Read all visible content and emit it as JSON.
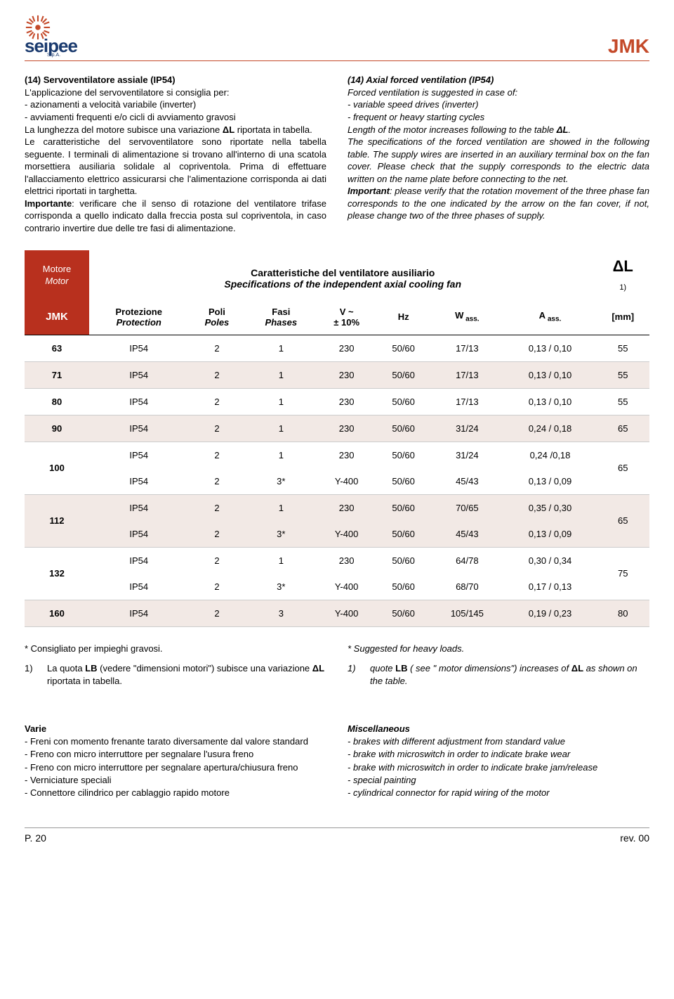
{
  "header": {
    "brand": "seipee",
    "brand_sub": "S.p.A.",
    "code": "JMK",
    "logo_color": "#c44a2a",
    "brand_color": "#1a3a6e"
  },
  "left_col": {
    "title": "(14) Servoventilatore assiale (IP54)",
    "p1": "L'applicazione del servoventilatore si consiglia per:",
    "b1": "- azionamenti a velocità variabile (inverter)",
    "b2": "- avviamenti frequenti e/o cicli di avviamento gravosi",
    "p2a": "La lunghezza del motore subisce una variazione ",
    "p2b": "ΔL",
    "p2c": " riportata in tabella.",
    "p3": "Le caratteristiche del servoventilatore sono riportate nella tabella seguente. I terminali di alimentazione si trovano all'interno di una scatola morsettiera ausiliaria solidale al copriventola. Prima di effettuare l'allacciamento elettrico assicurarsi che l'alimentazione corrisponda ai dati elettrici riportati in targhetta.",
    "p4_bold": "Importante",
    "p4": ": verificare che il senso di rotazione del ventilatore trifase corrisponda a quello indicato dalla freccia posta sul copriventola, in caso contrario invertire due delle tre fasi di alimentazione."
  },
  "right_col": {
    "title": "(14) Axial forced ventilation (IP54)",
    "p1": "Forced ventilation is suggested in case of:",
    "b1": "- variable speed drives (inverter)",
    "b2": "- frequent or heavy starting cycles",
    "p2a": "Length of the motor increases following to the table ",
    "p2b": "ΔL",
    "p2c": ".",
    "p3": "The specifications of the forced ventilation are showed in the following table. The supply wires are inserted in an auxiliary terminal box on the fan cover. Please check that the supply corresponds to the electric data written on the name plate before connecting to the net.",
    "p4_bold": "Important",
    "p4": ": please verify that the rotation movement of the three phase fan corresponds to the one indicated by the arrow on the fan cover, if not, please change two of the three phases of supply."
  },
  "table": {
    "motor_it": "Motore",
    "motor_en": "Motor",
    "big_title_it": "Caratteristiche del ventilatore ausiliario",
    "big_title_en": "Specifications of the independent axial cooling fan",
    "dl": "ΔL",
    "dl_sub": "1)",
    "jmk": "JMK",
    "h_prot_it": "Protezione",
    "h_prot_en": "Protection",
    "h_poli_it": "Poli",
    "h_poli_en": "Poles",
    "h_fasi_it": "Fasi",
    "h_fasi_en": "Phases",
    "h_v": "V ~",
    "h_v2": "± 10%",
    "h_hz": "Hz",
    "h_w": "W",
    "h_w_sub": " ass.",
    "h_a": "A",
    "h_a_sub": " ass.",
    "h_mm": "[mm]",
    "rows": [
      {
        "jmk": "63",
        "prot": "IP54",
        "poli": "2",
        "fasi": "1",
        "v": "230",
        "hz": "50/60",
        "w": "17/13",
        "a": "0,13 / 0,10",
        "mm": "55",
        "alt": false,
        "span": 1
      },
      {
        "jmk": "71",
        "prot": "IP54",
        "poli": "2",
        "fasi": "1",
        "v": "230",
        "hz": "50/60",
        "w": "17/13",
        "a": "0,13 / 0,10",
        "mm": "55",
        "alt": true,
        "span": 1
      },
      {
        "jmk": "80",
        "prot": "IP54",
        "poli": "2",
        "fasi": "1",
        "v": "230",
        "hz": "50/60",
        "w": "17/13",
        "a": "0,13 / 0,10",
        "mm": "55",
        "alt": false,
        "span": 1
      },
      {
        "jmk": "90",
        "prot": "IP54",
        "poli": "2",
        "fasi": "1",
        "v": "230",
        "hz": "50/60",
        "w": "31/24",
        "a": "0,24 / 0,18",
        "mm": "65",
        "alt": true,
        "span": 1
      },
      {
        "jmk": "100",
        "prot": "IP54",
        "poli": "2",
        "fasi": "1",
        "v": "230",
        "hz": "50/60",
        "w": "31/24",
        "a": "0,24 /0,18",
        "mm": "65",
        "alt": false,
        "span": 2,
        "r2": {
          "prot": "IP54",
          "poli": "2",
          "fasi": "3*",
          "v": "Y-400",
          "hz": "50/60",
          "w": "45/43",
          "a": "0,13 / 0,09"
        }
      },
      {
        "jmk": "112",
        "prot": "IP54",
        "poli": "2",
        "fasi": "1",
        "v": "230",
        "hz": "50/60",
        "w": "70/65",
        "a": "0,35 / 0,30",
        "mm": "65",
        "alt": true,
        "span": 2,
        "r2": {
          "prot": "IP54",
          "poli": "2",
          "fasi": "3*",
          "v": "Y-400",
          "hz": "50/60",
          "w": "45/43",
          "a": "0,13 / 0,09"
        }
      },
      {
        "jmk": "132",
        "prot": "IP54",
        "poli": "2",
        "fasi": "1",
        "v": "230",
        "hz": "50/60",
        "w": "64/78",
        "a": "0,30 / 0,34",
        "mm": "75",
        "alt": false,
        "span": 2,
        "r2": {
          "prot": "IP54",
          "poli": "2",
          "fasi": "3*",
          "v": "Y-400",
          "hz": "50/60",
          "w": "68/70",
          "a": "0,17 / 0,13"
        }
      },
      {
        "jmk": "160",
        "prot": "IP54",
        "poli": "2",
        "fasi": "3",
        "v": "Y-400",
        "hz": "50/60",
        "w": "105/145",
        "a": "0,19 / 0,23",
        "mm": "80",
        "alt": true,
        "span": 1
      }
    ]
  },
  "notes": {
    "left_star": "* Consigliato per impieghi gravosi.",
    "left_1a": "La quota ",
    "left_1b": "LB",
    "left_1c": " (vedere \"dimensioni motori\") subisce una variazione ",
    "left_1d": "ΔL",
    "left_1e": " riportata in tabella.",
    "right_star": "* Suggested for heavy loads.",
    "right_1a": "quote ",
    "right_1b": "LB",
    "right_1c": " ( see \" motor dimensions\") increases of ",
    "right_1d": "ΔL",
    "right_1e": " as shown on the table.",
    "num": "1)"
  },
  "varie": {
    "title_it": "Varie",
    "it": [
      "- Freni con momento frenante tarato diversamente dal valore standard",
      "- Freno con micro interruttore per segnalare l'usura freno",
      "- Freno con micro interruttore per segnalare apertura/chiusura freno",
      "- Verniciature speciali",
      "- Connettore cilindrico per cablaggio rapido motore"
    ],
    "title_en": "Miscellaneous",
    "en": [
      "-  brakes with different adjustment from standard value",
      "-  brake with microswitch in order to indicate brake wear",
      "-  brake with microswitch in order to indicate brake jam/release",
      "-  special painting",
      "-  cylindrical connector for rapid wiring of the motor"
    ]
  },
  "footer": {
    "page": "P. 20",
    "rev": "rev. 00"
  }
}
